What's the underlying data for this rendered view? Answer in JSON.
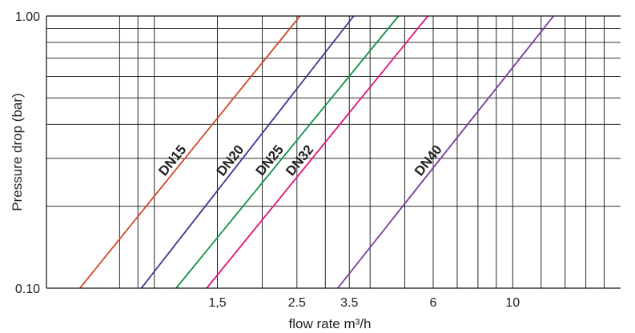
{
  "chart_data": {
    "type": "line",
    "title": "",
    "xlabel": "flow rate m³/h",
    "ylabel": "Pressure drop (bar)",
    "x_scale": "log",
    "y_scale": "log",
    "xlim": [
      0.5,
      20
    ],
    "ylim": [
      0.1,
      1.0
    ],
    "grid": true,
    "y_ticks": [
      {
        "value": 1.0,
        "label": "1.00"
      },
      {
        "value": 0.1,
        "label": "0.10"
      }
    ],
    "x_ticks": [
      {
        "value": 1.5,
        "label": "1,5"
      },
      {
        "value": 2.5,
        "label": "2.5"
      },
      {
        "value": 3.5,
        "label": "3.5"
      },
      {
        "value": 6,
        "label": "6"
      },
      {
        "value": 10,
        "label": "10"
      }
    ],
    "series": [
      {
        "name": "DN15",
        "color": "#d2472a",
        "x": [
          0.62,
          2.55
        ],
        "y": [
          0.1,
          1.0
        ]
      },
      {
        "name": "DN20",
        "color": "#3c3690",
        "x": [
          0.92,
          3.6
        ],
        "y": [
          0.1,
          1.0
        ]
      },
      {
        "name": "DN25",
        "color": "#12924a",
        "x": [
          1.15,
          4.8
        ],
        "y": [
          0.1,
          1.0
        ]
      },
      {
        "name": "DN32",
        "color": "#e0157a",
        "x": [
          1.4,
          5.8
        ],
        "y": [
          0.1,
          1.0
        ]
      },
      {
        "name": "DN40",
        "color": "#7b3b9a",
        "x": [
          3.25,
          13.0
        ],
        "y": [
          0.1,
          1.0
        ]
      }
    ]
  }
}
